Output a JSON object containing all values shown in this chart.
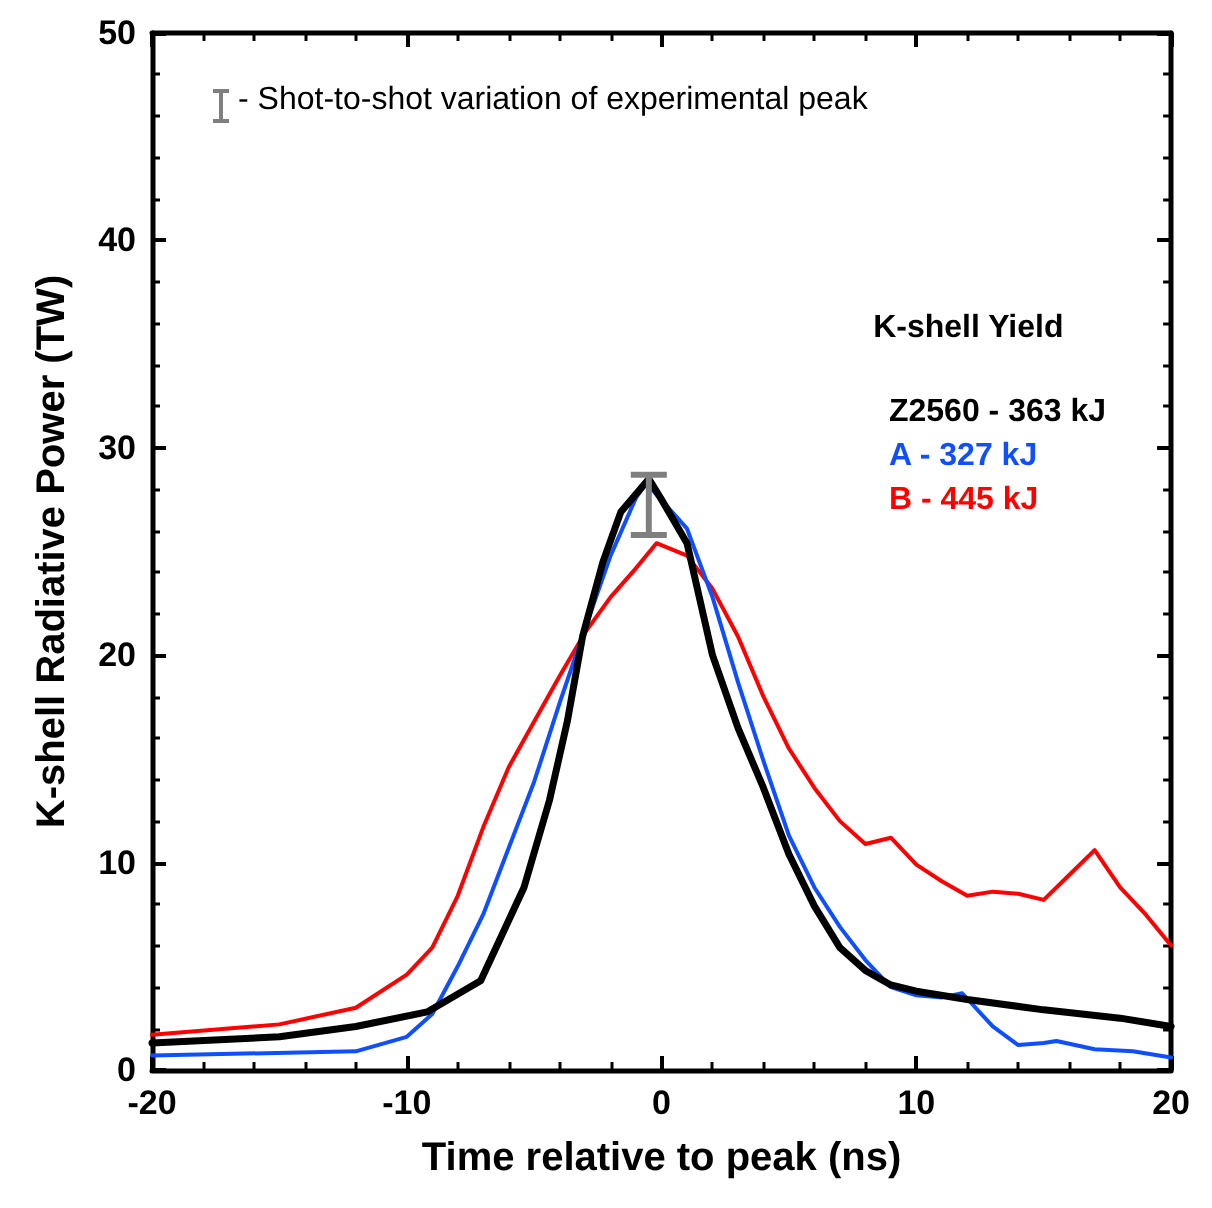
{
  "chart_data": {
    "type": "line",
    "xlabel": "Time relative to peak (ns)",
    "ylabel": "K-shell Radiative Power (TW)",
    "legend_title": "K-shell Yield",
    "legend": "top right",
    "grid": false,
    "marker": "none",
    "line_style": "solid",
    "xlim": [
      -20,
      20
    ],
    "xticks": [
      -20,
      -10,
      0,
      10,
      20
    ],
    "ylim": [
      0,
      50
    ],
    "yticks": [
      0,
      10,
      20,
      30,
      40,
      50
    ],
    "annotations": [
      "- Shot-to-shot variation of experimental peak"
    ],
    "series": [
      {
        "name": "Z2560 - 363 kJ",
        "color": "#000000",
        "x": [
          -20,
          -15,
          -12,
          -9.2,
          -7.1,
          -5.4,
          -4.4,
          -3.7,
          -3.1,
          -2.3,
          -1.6,
          -0.5,
          0,
          1,
          2,
          3,
          4,
          5,
          6,
          7,
          8,
          9,
          10,
          12,
          15,
          18,
          20
        ],
        "values": [
          1.3,
          1.6,
          2.1,
          2.8,
          4.3,
          8.8,
          13,
          16.8,
          20.9,
          24.5,
          26.9,
          28.5,
          27.5,
          25.4,
          20,
          16.5,
          13.6,
          10.4,
          7.9,
          5.9,
          4.8,
          4.1,
          3.8,
          3.4,
          2.9,
          2.5,
          2.1
        ],
        "errors": [
          null,
          null,
          null,
          null,
          null,
          null,
          null,
          null,
          null,
          null,
          null,
          [
            25.8,
            28.7
          ],
          null,
          null,
          null,
          null,
          null,
          null,
          null,
          null,
          null,
          null,
          null,
          null,
          null,
          null,
          null
        ]
      },
      {
        "name": "A - 327 kJ",
        "color": "#0f4fff",
        "x": [
          -20,
          -12,
          -10,
          -9,
          -8,
          -7,
          -6,
          -5,
          -4,
          -3,
          -2,
          -1,
          -0.6,
          1,
          2,
          3,
          4,
          5,
          6,
          7,
          8,
          9,
          10,
          11,
          11.8,
          13,
          14,
          15,
          15.5,
          17,
          18.5,
          20
        ],
        "values": [
          0.7,
          0.9,
          1.6,
          2.7,
          5,
          7.5,
          10.7,
          13.9,
          17.7,
          21.3,
          24.8,
          27.6,
          28.3,
          26.1,
          22.8,
          18.7,
          14.9,
          11.3,
          8.8,
          6.9,
          5.3,
          4,
          3.6,
          3.5,
          3.7,
          2.1,
          1.2,
          1.3,
          1.4,
          1,
          0.9,
          0.6
        ]
      },
      {
        "name": "B - 445 kJ",
        "color": "#ff0000",
        "x": [
          -20,
          -15,
          -12,
          -10,
          -9,
          -8,
          -7,
          -6,
          -5,
          -4,
          -3,
          -2,
          -1,
          -0.2,
          1,
          2,
          3,
          4,
          5,
          6,
          7,
          8,
          9,
          10,
          11,
          12,
          13,
          14,
          15,
          16,
          17,
          18,
          19,
          20
        ],
        "values": [
          1.7,
          2.2,
          3,
          4.6,
          5.9,
          8.4,
          11.7,
          14.6,
          16.8,
          19,
          21.1,
          22.8,
          24.2,
          25.4,
          24.8,
          23.2,
          20.9,
          18,
          15.5,
          13.6,
          12,
          10.9,
          11.2,
          9.9,
          9.1,
          8.4,
          8.6,
          8.5,
          8.2,
          9.4,
          10.6,
          8.8,
          7.5,
          6
        ]
      }
    ]
  }
}
